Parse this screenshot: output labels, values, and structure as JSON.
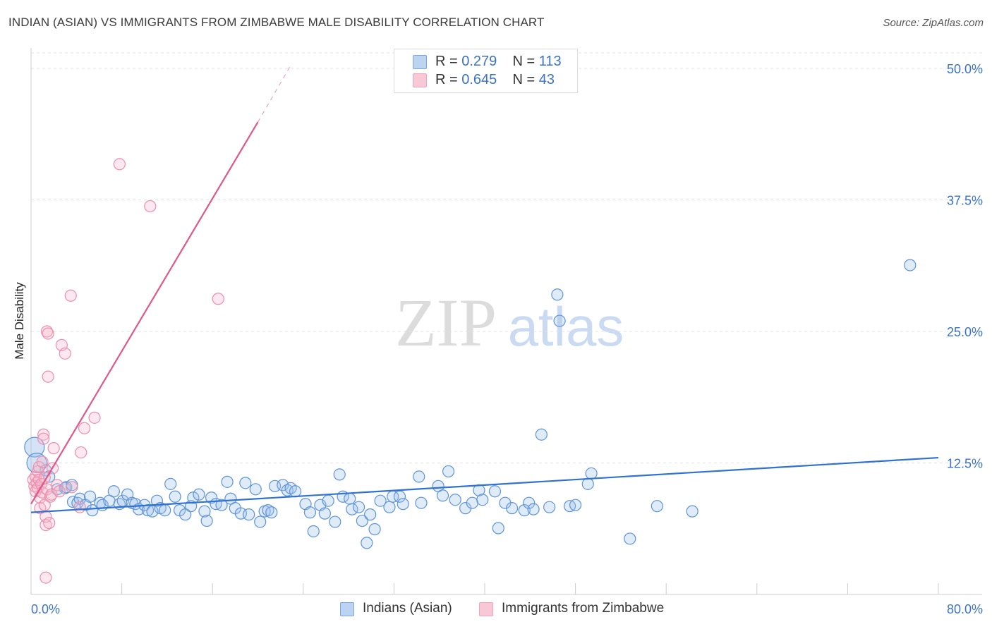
{
  "title": "INDIAN (ASIAN) VS IMMIGRANTS FROM ZIMBABWE MALE DISABILITY CORRELATION CHART",
  "source": "Source: ZipAtlas.com",
  "watermark": {
    "zip": "ZIP",
    "atlas": "atlas"
  },
  "legend_top": {
    "rows": [
      {
        "r_label": "R =",
        "r_value": "0.279",
        "n_label": "N =",
        "n_value": "113"
      },
      {
        "r_label": "R =",
        "r_value": "0.645",
        "n_label": "N =",
        "n_value": "43"
      }
    ]
  },
  "chart_data": {
    "type": "scatter",
    "title": "INDIAN (ASIAN) VS IMMIGRANTS FROM ZIMBABWE MALE DISABILITY CORRELATION CHART",
    "xlabel": "",
    "ylabel": "Male Disability",
    "xlim": [
      0,
      80
    ],
    "ylim": [
      0,
      52.5
    ],
    "x_tick_labels": [
      "0.0%",
      "80.0%"
    ],
    "y_tick_labels": [
      "12.5%",
      "25.0%",
      "37.5%",
      "50.0%"
    ],
    "y_ticks": [
      12.5,
      25.0,
      37.5,
      50.0
    ],
    "grid": "horizontal dashed",
    "legend_position": "bottom",
    "series": [
      {
        "name": "Indians (Asian)",
        "color": "#7aa7e0",
        "line_color": "#2f72d1",
        "r": 0.279,
        "n": 113,
        "trend": {
          "x": [
            0,
            80
          ],
          "y": [
            7.8,
            13.0
          ]
        },
        "points": [
          [
            0.3,
            14.0
          ],
          [
            0.5,
            12.5
          ],
          [
            1.3,
            11.8
          ],
          [
            1.6,
            11.2
          ],
          [
            2.3,
            10.0
          ],
          [
            3.0,
            10.1
          ],
          [
            3.1,
            10.2
          ],
          [
            3.6,
            10.4
          ],
          [
            3.7,
            8.8
          ],
          [
            4.1,
            8.7
          ],
          [
            4.3,
            9.1
          ],
          [
            4.8,
            8.5
          ],
          [
            5.4,
            8.0
          ],
          [
            5.2,
            9.3
          ],
          [
            6.1,
            8.7
          ],
          [
            6.3,
            8.5
          ],
          [
            6.9,
            8.9
          ],
          [
            7.3,
            9.8
          ],
          [
            7.8,
            8.6
          ],
          [
            8.1,
            8.9
          ],
          [
            8.5,
            9.5
          ],
          [
            8.9,
            8.7
          ],
          [
            9.2,
            8.6
          ],
          [
            9.5,
            8.1
          ],
          [
            10.0,
            8.5
          ],
          [
            10.3,
            8.0
          ],
          [
            10.7,
            7.9
          ],
          [
            11.1,
            8.9
          ],
          [
            11.4,
            8.2
          ],
          [
            11.8,
            8.0
          ],
          [
            12.3,
            10.5
          ],
          [
            12.7,
            9.3
          ],
          [
            13.1,
            8.0
          ],
          [
            13.6,
            7.6
          ],
          [
            14.1,
            8.4
          ],
          [
            14.3,
            9.2
          ],
          [
            14.8,
            9.5
          ],
          [
            15.3,
            7.9
          ],
          [
            15.5,
            7.0
          ],
          [
            15.9,
            9.2
          ],
          [
            16.3,
            8.6
          ],
          [
            16.8,
            8.5
          ],
          [
            17.3,
            10.7
          ],
          [
            17.6,
            9.1
          ],
          [
            18.0,
            8.2
          ],
          [
            18.5,
            7.7
          ],
          [
            18.9,
            10.6
          ],
          [
            19.2,
            7.6
          ],
          [
            19.8,
            10.0
          ],
          [
            20.2,
            6.9
          ],
          [
            20.6,
            7.9
          ],
          [
            20.9,
            8.0
          ],
          [
            21.2,
            7.8
          ],
          [
            21.5,
            10.3
          ],
          [
            22.2,
            10.4
          ],
          [
            22.6,
            9.9
          ],
          [
            22.9,
            10.1
          ],
          [
            23.3,
            9.8
          ],
          [
            24.2,
            8.6
          ],
          [
            24.6,
            7.8
          ],
          [
            24.9,
            6.0
          ],
          [
            25.5,
            8.5
          ],
          [
            25.9,
            7.7
          ],
          [
            26.2,
            8.9
          ],
          [
            26.8,
            6.9
          ],
          [
            27.2,
            11.4
          ],
          [
            27.5,
            9.3
          ],
          [
            28.1,
            9.1
          ],
          [
            28.3,
            8.1
          ],
          [
            28.9,
            8.3
          ],
          [
            29.2,
            7.0
          ],
          [
            29.6,
            4.9
          ],
          [
            29.9,
            7.6
          ],
          [
            30.3,
            6.2
          ],
          [
            30.8,
            8.9
          ],
          [
            31.6,
            8.3
          ],
          [
            31.9,
            9.3
          ],
          [
            32.5,
            9.3
          ],
          [
            32.8,
            8.6
          ],
          [
            34.2,
            11.2
          ],
          [
            34.4,
            8.7
          ],
          [
            35.9,
            10.3
          ],
          [
            36.3,
            9.4
          ],
          [
            36.8,
            11.7
          ],
          [
            37.4,
            9.0
          ],
          [
            38.3,
            8.2
          ],
          [
            38.9,
            8.7
          ],
          [
            39.5,
            9.9
          ],
          [
            39.8,
            9.0
          ],
          [
            40.9,
            9.8
          ],
          [
            41.2,
            6.3
          ],
          [
            41.8,
            8.7
          ],
          [
            42.4,
            8.2
          ],
          [
            43.5,
            8.0
          ],
          [
            43.9,
            8.7
          ],
          [
            44.3,
            8.1
          ],
          [
            45.0,
            15.2
          ],
          [
            45.7,
            8.3
          ],
          [
            46.4,
            28.5
          ],
          [
            46.6,
            26.0
          ],
          [
            47.5,
            8.4
          ],
          [
            48.0,
            8.5
          ],
          [
            49.1,
            10.5
          ],
          [
            49.4,
            11.5
          ],
          [
            52.8,
            5.3
          ],
          [
            55.2,
            8.4
          ],
          [
            58.3,
            7.9
          ],
          [
            77.5,
            31.3
          ]
        ]
      },
      {
        "name": "Immigrants from Zimbabwe",
        "color": "#f2a3bd",
        "line_color": "#e0588a",
        "r": 0.645,
        "n": 43,
        "trend": {
          "x": [
            0,
            20.0
          ],
          "y": [
            8.6,
            44.9
          ]
        },
        "trend_dashed": {
          "x": [
            20.0,
            22.9
          ],
          "y": [
            44.9,
            50.3
          ]
        },
        "points": [
          [
            0.2,
            10.9
          ],
          [
            0.3,
            10.3
          ],
          [
            0.4,
            11.2
          ],
          [
            0.4,
            9.8
          ],
          [
            0.5,
            10.6
          ],
          [
            0.6,
            10.1
          ],
          [
            0.6,
            11.7
          ],
          [
            0.7,
            12.1
          ],
          [
            0.7,
            10.9
          ],
          [
            0.8,
            9.2
          ],
          [
            0.8,
            8.2
          ],
          [
            0.9,
            10.5
          ],
          [
            1.0,
            9.7
          ],
          [
            1.0,
            12.6
          ],
          [
            1.1,
            15.2
          ],
          [
            1.1,
            14.8
          ],
          [
            1.2,
            11.1
          ],
          [
            1.2,
            8.5
          ],
          [
            1.3,
            6.6
          ],
          [
            1.3,
            7.4
          ],
          [
            1.4,
            10.0
          ],
          [
            1.4,
            25.0
          ],
          [
            1.5,
            20.7
          ],
          [
            1.5,
            24.8
          ],
          [
            1.6,
            6.8
          ],
          [
            1.7,
            9.3
          ],
          [
            1.8,
            9.5
          ],
          [
            1.9,
            12.0
          ],
          [
            2.0,
            13.9
          ],
          [
            2.3,
            10.4
          ],
          [
            2.5,
            9.8
          ],
          [
            2.7,
            23.7
          ],
          [
            3.0,
            22.9
          ],
          [
            3.5,
            28.4
          ],
          [
            3.6,
            10.2
          ],
          [
            4.3,
            8.3
          ],
          [
            4.4,
            13.5
          ],
          [
            4.7,
            15.8
          ],
          [
            5.6,
            16.8
          ],
          [
            7.8,
            40.9
          ],
          [
            10.5,
            36.9
          ],
          [
            16.5,
            28.1
          ],
          [
            1.3,
            1.6
          ]
        ]
      }
    ]
  }
}
